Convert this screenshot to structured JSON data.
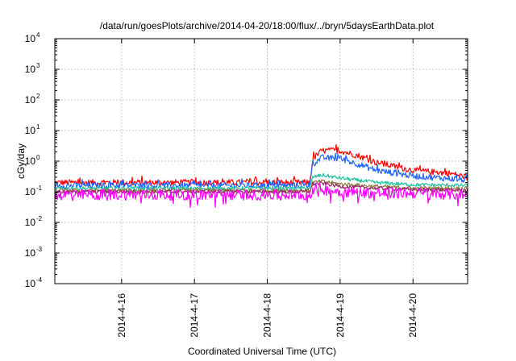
{
  "chart_data": {
    "type": "line",
    "title": "/data/run/goesPlots/archive/2014-04-20/18:00/flux/../bryn/5daysEarthData.plot",
    "xlabel": "Coordinated Universal Time (UTC)",
    "ylabel": "cGy/day",
    "yscale": "log",
    "ylim": [
      0.0001,
      10000
    ],
    "xlim": [
      "2014-04-15T02:00",
      "2014-04-20T18:00"
    ],
    "y_ticks": [
      {
        "base": "10",
        "exp": "4",
        "value": 10000
      },
      {
        "base": "10",
        "exp": "3",
        "value": 1000
      },
      {
        "base": "10",
        "exp": "2",
        "value": 100
      },
      {
        "base": "10",
        "exp": "1",
        "value": 10
      },
      {
        "base": "10",
        "exp": "0",
        "value": 1
      },
      {
        "base": "10",
        "exp": "-1",
        "value": 0.1
      },
      {
        "base": "10",
        "exp": "-2",
        "value": 0.01
      },
      {
        "base": "10",
        "exp": "-3",
        "value": 0.001
      },
      {
        "base": "10",
        "exp": "-4",
        "value": 0.0001
      }
    ],
    "x_ticks": [
      "2014-4-16",
      "2014-4-17",
      "2014-4-18",
      "2014-4-19",
      "2014-4-20"
    ],
    "x_tick_values": [
      "2014-04-16T00:00",
      "2014-04-17T00:00",
      "2014-04-18T00:00",
      "2014-04-19T00:00",
      "2014-04-20T00:00"
    ],
    "grid": true,
    "legend": "none",
    "series": [
      {
        "color": "#ff0000",
        "x": [
          "2014-04-15T02:00",
          "2014-04-16T00:00",
          "2014-04-17T00:00",
          "2014-04-18T00:00",
          "2014-04-18T14:00",
          "2014-04-18T15:00",
          "2014-04-18T18:00",
          "2014-04-19T00:00",
          "2014-04-19T06:00",
          "2014-04-19T12:00",
          "2014-04-20T00:00",
          "2014-04-20T12:00",
          "2014-04-20T18:00"
        ],
        "values": [
          0.2,
          0.2,
          0.2,
          0.2,
          0.2,
          1.2,
          2.2,
          2.2,
          1.5,
          0.9,
          0.5,
          0.4,
          0.3
        ]
      },
      {
        "color": "#1e64ff",
        "x": [
          "2014-04-15T02:00",
          "2014-04-16T00:00",
          "2014-04-17T00:00",
          "2014-04-18T00:00",
          "2014-04-18T14:00",
          "2014-04-18T15:00",
          "2014-04-18T18:00",
          "2014-04-19T00:00",
          "2014-04-19T06:00",
          "2014-04-19T12:00",
          "2014-04-20T00:00",
          "2014-04-20T12:00",
          "2014-04-20T18:00"
        ],
        "values": [
          0.16,
          0.16,
          0.16,
          0.16,
          0.16,
          0.8,
          1.3,
          1.2,
          0.8,
          0.5,
          0.33,
          0.27,
          0.24
        ]
      },
      {
        "color": "#20c0a0",
        "x": [
          "2014-04-15T02:00",
          "2014-04-16T00:00",
          "2014-04-17T00:00",
          "2014-04-18T00:00",
          "2014-04-18T14:00",
          "2014-04-18T15:00",
          "2014-04-18T18:00",
          "2014-04-19T00:00",
          "2014-04-19T12:00",
          "2014-04-20T00:00",
          "2014-04-20T18:00"
        ],
        "values": [
          0.13,
          0.13,
          0.13,
          0.13,
          0.13,
          0.3,
          0.35,
          0.28,
          0.2,
          0.17,
          0.16
        ]
      },
      {
        "color": "#8a7a3a",
        "x": [
          "2014-04-15T02:00",
          "2014-04-16T00:00",
          "2014-04-17T00:00",
          "2014-04-18T00:00",
          "2014-04-18T14:00",
          "2014-04-18T15:00",
          "2014-04-18T18:00",
          "2014-04-19T00:00",
          "2014-04-19T12:00",
          "2014-04-20T00:00",
          "2014-04-20T18:00"
        ],
        "values": [
          0.11,
          0.11,
          0.11,
          0.11,
          0.11,
          0.2,
          0.22,
          0.18,
          0.15,
          0.13,
          0.13
        ]
      },
      {
        "color": "#9a2a6a",
        "x": [
          "2014-04-15T02:00",
          "2014-04-16T00:00",
          "2014-04-17T00:00",
          "2014-04-18T00:00",
          "2014-04-18T14:00",
          "2014-04-18T15:00",
          "2014-04-18T18:00",
          "2014-04-19T00:00",
          "2014-04-19T12:00",
          "2014-04-20T00:00",
          "2014-04-20T18:00"
        ],
        "values": [
          0.1,
          0.1,
          0.1,
          0.1,
          0.1,
          0.18,
          0.19,
          0.15,
          0.13,
          0.12,
          0.11
        ]
      },
      {
        "color": "#ff00ff",
        "x": [
          "2014-04-15T02:00",
          "2014-04-16T00:00",
          "2014-04-17T00:00",
          "2014-04-18T00:00",
          "2014-04-18T14:00",
          "2014-04-18T15:00",
          "2014-04-18T18:00",
          "2014-04-19T00:00",
          "2014-04-19T12:00",
          "2014-04-20T00:00",
          "2014-04-20T18:00"
        ],
        "values": [
          0.08,
          0.08,
          0.08,
          0.08,
          0.08,
          0.12,
          0.12,
          0.1,
          0.09,
          0.09,
          0.08
        ]
      }
    ]
  }
}
